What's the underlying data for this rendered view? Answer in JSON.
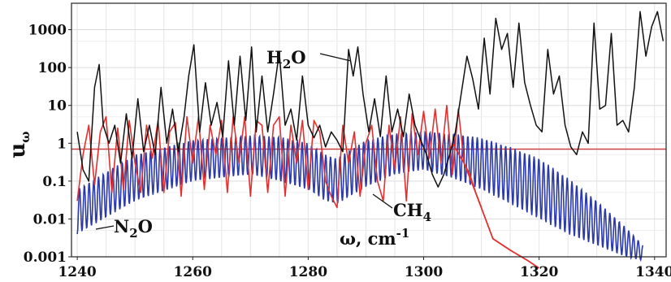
{
  "chart_data": {
    "type": "line",
    "title": "",
    "xlabel_parts": [
      "ω, cm",
      "-1"
    ],
    "ylabel_parts": [
      "u",
      "ω"
    ],
    "x_scale": "linear",
    "y_scale": "log",
    "xlim": [
      1239,
      1342
    ],
    "ylim": [
      0.001,
      5000
    ],
    "xticks": [
      1240,
      1260,
      1280,
      1300,
      1320,
      1340
    ],
    "yticks": [
      0.001,
      0.01,
      0.1,
      1,
      10,
      100,
      1000
    ],
    "ytick_labels": [
      "0.001",
      "0.01",
      "0.1",
      "1",
      "10",
      "100",
      "1000"
    ],
    "grid": true,
    "legend": "none",
    "reference_line": {
      "y": 0.7,
      "color": "#d04040"
    },
    "series": [
      {
        "id": "h2o",
        "color": "#111111",
        "label_parts": [
          "H",
          "2",
          "O"
        ],
        "x": [
          1240,
          1241,
          1242,
          1243,
          1243.8,
          1244.5,
          1245.5,
          1246.5,
          1247.5,
          1248.5,
          1249.5,
          1250.5,
          1251.5,
          1252.5,
          1253.5,
          1254.5,
          1255.5,
          1256.5,
          1257.5,
          1258.5,
          1259.3,
          1260.2,
          1261.2,
          1262.2,
          1263.2,
          1264.2,
          1265.2,
          1266.2,
          1267.2,
          1268.2,
          1269.2,
          1270.2,
          1271.0,
          1272.0,
          1273.0,
          1274.0,
          1275.0,
          1276.0,
          1277.0,
          1278.0,
          1279.0,
          1280.0,
          1281.0,
          1282.0,
          1283.0,
          1284.0,
          1285.0,
          1286.0,
          1287.0,
          1287.8,
          1288.6,
          1289.5,
          1290.5,
          1291.5,
          1292.5,
          1293.5,
          1294.5,
          1295.5,
          1296.5,
          1297.5,
          1298.5,
          1299.5,
          1300.5,
          1301.5,
          1302.5,
          1303.5,
          1304.5,
          1305.5,
          1306.5,
          1307.5,
          1308.5,
          1309.5,
          1310.5,
          1311.5,
          1312.5,
          1313.5,
          1314.5,
          1315.5,
          1316.5,
          1317.5,
          1318.5,
          1319.5,
          1320.5,
          1321.5,
          1322.5,
          1323.5,
          1324.5,
          1325.5,
          1326.5,
          1327.5,
          1328.5,
          1329.5,
          1330.5,
          1331.5,
          1332.5,
          1333.5,
          1334.5,
          1335.5,
          1336.5,
          1337.5,
          1338.5,
          1339.5,
          1340.5,
          1341.5
        ],
        "y": [
          2,
          0.2,
          0.1,
          30,
          120,
          3,
          1,
          3,
          0.3,
          6,
          0.4,
          15,
          0.6,
          3,
          0.5,
          30,
          1,
          8,
          0.6,
          5,
          60,
          400,
          2,
          40,
          3,
          12,
          1.5,
          150,
          3,
          200,
          4,
          350,
          2,
          60,
          2,
          20,
          250,
          3,
          8,
          1.2,
          60,
          3,
          1.4,
          3,
          0.8,
          2,
          1.2,
          0.6,
          300,
          60,
          350,
          20,
          2,
          15,
          1.5,
          60,
          2,
          8,
          1.5,
          20,
          3,
          1.2,
          0.5,
          0.15,
          0.07,
          0.15,
          0.5,
          2,
          20,
          200,
          50,
          8,
          600,
          20,
          2000,
          300,
          800,
          30,
          1500,
          40,
          10,
          3,
          2,
          300,
          20,
          60,
          3,
          0.8,
          0.5,
          2,
          1,
          1500,
          8,
          10,
          800,
          3,
          4,
          2,
          30,
          3000,
          200,
          1200,
          3000,
          500
        ]
      },
      {
        "id": "ch4",
        "color": "#e23030",
        "label_parts": [
          "CH",
          "4"
        ],
        "x": [
          1240,
          1241,
          1242,
          1243,
          1244,
          1245,
          1246,
          1247,
          1248,
          1249,
          1250,
          1251,
          1252,
          1253,
          1254,
          1255,
          1256,
          1257,
          1258,
          1259,
          1260,
          1261,
          1262,
          1263,
          1264,
          1265,
          1266,
          1267,
          1268,
          1269,
          1270,
          1271,
          1272,
          1273,
          1274,
          1275,
          1276,
          1277,
          1278,
          1279,
          1280,
          1281,
          1282,
          1283,
          1284,
          1285,
          1286,
          1287,
          1288,
          1289,
          1290,
          1291,
          1292,
          1293,
          1294,
          1295,
          1296,
          1297,
          1298,
          1299,
          1300,
          1301,
          1302,
          1303,
          1304,
          1305,
          1306,
          1307,
          1308,
          1309,
          1310
        ],
        "y": [
          0.03,
          0.5,
          3,
          0.08,
          2,
          5,
          0.05,
          2.5,
          0.06,
          4,
          0.3,
          0.05,
          3,
          0.4,
          4,
          0.05,
          2,
          3.5,
          0.04,
          5,
          0.3,
          5,
          0.06,
          3,
          0.5,
          4,
          0.05,
          5,
          0.3,
          5,
          0.04,
          4,
          3,
          0.05,
          3,
          5,
          0.04,
          3,
          0.3,
          4,
          0.06,
          4,
          2,
          0.1,
          0.04,
          0.02,
          3,
          0.3,
          2,
          0.04,
          1,
          3,
          0.1,
          0.03,
          3,
          0.2,
          5,
          0.03,
          6,
          0.5,
          7,
          0.4,
          8,
          0.3,
          10,
          0.15,
          8,
          0.3,
          0.15,
          0.05,
          0.02
        ]
      },
      {
        "id": "ch4-tail",
        "color": "#e23030",
        "x": [
          1305,
          1307,
          1309,
          1312,
          1315,
          1318,
          1320
        ],
        "y": [
          1,
          0.3,
          0.05,
          0.003,
          0.0015,
          0.0008,
          0.0005
        ]
      },
      {
        "id": "n2o",
        "color": "#2b3aa8",
        "label_parts": [
          "N",
          "2",
          "O"
        ],
        "x": [
          1240,
          1250,
          1260,
          1270,
          1275,
          1280,
          1283,
          1285,
          1290,
          1295,
          1300,
          1305,
          1310,
          1315,
          1320,
          1325,
          1330,
          1335,
          1338
        ],
        "y_upper": [
          0.06,
          0.5,
          1.2,
          1.6,
          1.5,
          1.0,
          0.5,
          0.4,
          1.2,
          1.8,
          2,
          1.8,
          1.4,
          0.8,
          0.4,
          0.12,
          0.03,
          0.006,
          0.002
        ],
        "y_lower": [
          0.004,
          0.03,
          0.1,
          0.15,
          0.1,
          0.06,
          0.03,
          0.025,
          0.07,
          0.15,
          0.2,
          0.12,
          0.06,
          0.025,
          0.01,
          0.004,
          0.002,
          0.001,
          0.0008
        ]
      }
    ]
  }
}
